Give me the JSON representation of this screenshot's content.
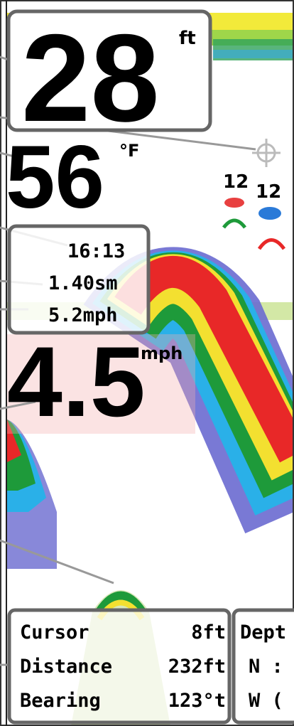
{
  "readouts": {
    "depth": {
      "value": "28",
      "unit": "ft"
    },
    "temperature": {
      "value": "56",
      "unit": "°F"
    },
    "time": "16:13",
    "distance": "1.40sm",
    "trip_speed": "5.2mph",
    "speed": {
      "value": "4.5",
      "unit": "mph"
    }
  },
  "fish_icons": [
    {
      "depth": "12"
    },
    {
      "depth": "12"
    }
  ],
  "cursor_box": {
    "rows": [
      [
        "Cursor",
        "8ft"
      ],
      [
        "Distance",
        "232ft"
      ],
      [
        "Bearing",
        "123°t"
      ]
    ]
  },
  "position_box": {
    "rows": [
      "Dept",
      "N :",
      "W ("
    ]
  }
}
